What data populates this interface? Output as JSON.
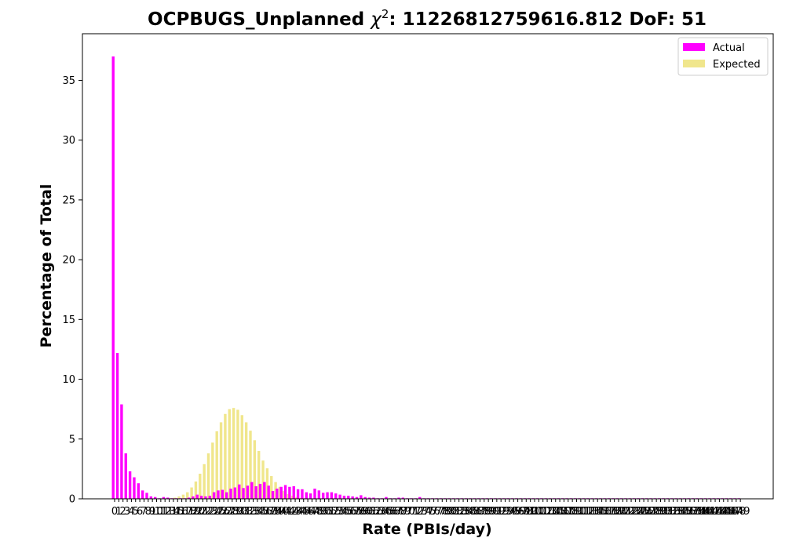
{
  "chart_data": {
    "type": "bar",
    "title_prefix": "OCPBUGS_Unplanned ",
    "title_chi": "χ",
    "title_sup": "2",
    "title_suffix": ": 11226812759616.812 DoF: 51",
    "xlabel": "Rate (PBIs/day)",
    "ylabel": "Percentage of Total",
    "ylim": [
      0,
      38.9
    ],
    "yticks": [
      0,
      5,
      10,
      15,
      20,
      25,
      30,
      35
    ],
    "legend_position": "top-right",
    "categories": [
      0,
      1,
      2,
      3,
      4,
      5,
      6,
      7,
      8,
      9,
      10,
      11,
      12,
      13,
      14,
      15,
      16,
      17,
      18,
      19,
      20,
      21,
      22,
      23,
      24,
      25,
      26,
      27,
      28,
      29,
      30,
      31,
      32,
      33,
      34,
      35,
      36,
      37,
      38,
      39,
      40,
      41,
      42,
      43,
      44,
      45,
      46,
      47,
      48,
      49,
      50,
      51,
      52,
      53,
      54,
      55,
      56,
      57,
      58,
      59,
      60,
      61,
      62,
      63,
      64,
      65,
      66,
      67,
      68,
      69,
      70,
      71,
      72,
      73,
      74,
      75,
      76,
      77,
      78,
      79,
      80,
      81,
      82,
      83,
      84,
      85,
      86,
      87,
      88,
      89,
      90,
      91,
      92,
      93,
      94,
      95,
      96,
      97,
      98,
      99,
      100,
      101,
      102,
      103,
      104,
      105,
      106,
      107,
      108,
      109,
      110,
      111,
      112,
      113,
      114,
      115,
      116,
      117,
      118,
      119,
      120,
      121,
      122,
      123,
      124,
      125,
      126,
      127,
      128,
      129,
      130,
      131,
      132,
      133,
      134,
      135,
      136,
      137,
      138,
      139,
      140,
      141,
      142,
      143,
      144,
      145,
      146,
      147,
      148,
      149
    ],
    "series": [
      {
        "name": "Actual",
        "color": "#ff00ff",
        "values": [
          37.0,
          12.2,
          7.9,
          3.8,
          2.3,
          1.8,
          1.3,
          0.7,
          0.5,
          0.2,
          0.15,
          0.05,
          0.15,
          0.1,
          0.05,
          0.05,
          0.05,
          0.05,
          0.1,
          0.2,
          0.35,
          0.25,
          0.2,
          0.25,
          0.55,
          0.7,
          0.75,
          0.55,
          0.85,
          0.95,
          1.2,
          0.9,
          1.1,
          1.4,
          1.05,
          1.25,
          1.4,
          1.1,
          0.65,
          0.85,
          1.0,
          1.15,
          1.0,
          1.05,
          0.8,
          0.8,
          0.55,
          0.45,
          0.85,
          0.7,
          0.5,
          0.55,
          0.55,
          0.45,
          0.35,
          0.25,
          0.25,
          0.2,
          0.15,
          0.3,
          0.15,
          0.1,
          0.1,
          0.05,
          0.05,
          0.15,
          0.05,
          0.05,
          0.1,
          0.1,
          0.05,
          0.05,
          0.05,
          0.15,
          0.05,
          0.05,
          0.05,
          0.05,
          0.05,
          0.05,
          0.05,
          0.05,
          0.05,
          0.05,
          0.05,
          0.05,
          0.05,
          0.05,
          0.05,
          0.05,
          0.05,
          0.05,
          0.05,
          0.05,
          0.05,
          0.05,
          0.05,
          0.05,
          0.05,
          0.05,
          0.05,
          0.05,
          0.05,
          0.05,
          0.05,
          0.05,
          0.05,
          0.05,
          0.05,
          0.05,
          0.05,
          0.05,
          0.05,
          0.05,
          0.05,
          0.05,
          0.05,
          0.05,
          0.05,
          0.05,
          0.05,
          0.05,
          0.05,
          0.05,
          0.05,
          0.05,
          0.05,
          0.05,
          0.05,
          0.05,
          0.05,
          0.05,
          0.05,
          0.05,
          0.05,
          0.05,
          0.05,
          0.05,
          0.05,
          0.05,
          0.05,
          0.05,
          0.05,
          0.05,
          0.05,
          0.05,
          0.05,
          0.05,
          0.05,
          0.05
        ]
      },
      {
        "name": "Expected",
        "color": "#f0e68c",
        "values": [
          0,
          0,
          0,
          0,
          0,
          0,
          0,
          0,
          0,
          0,
          0,
          0,
          0.02,
          0.05,
          0.1,
          0.2,
          0.35,
          0.55,
          0.95,
          1.45,
          2.1,
          2.9,
          3.8,
          4.7,
          5.65,
          6.4,
          7.1,
          7.5,
          7.6,
          7.45,
          7.0,
          6.4,
          5.7,
          4.9,
          4.0,
          3.2,
          2.55,
          1.9,
          1.4,
          1.0,
          0.65,
          0.4,
          0.25,
          0.15,
          0.08,
          0.04,
          0.02,
          0.01,
          0,
          0,
          0,
          0,
          0,
          0,
          0,
          0,
          0,
          0,
          0,
          0,
          0,
          0,
          0,
          0,
          0,
          0,
          0,
          0,
          0,
          0,
          0,
          0,
          0,
          0,
          0,
          0,
          0,
          0,
          0,
          0,
          0,
          0,
          0,
          0,
          0,
          0,
          0,
          0,
          0,
          0,
          0,
          0,
          0,
          0,
          0,
          0,
          0,
          0,
          0,
          0,
          0,
          0,
          0,
          0,
          0,
          0,
          0,
          0,
          0,
          0,
          0,
          0,
          0,
          0,
          0,
          0,
          0,
          0,
          0,
          0,
          0,
          0,
          0,
          0,
          0,
          0,
          0,
          0,
          0,
          0,
          0,
          0,
          0,
          0,
          0,
          0,
          0,
          0,
          0,
          0,
          0,
          0,
          0,
          0,
          0,
          0,
          0,
          0,
          0,
          0
        ]
      }
    ]
  }
}
